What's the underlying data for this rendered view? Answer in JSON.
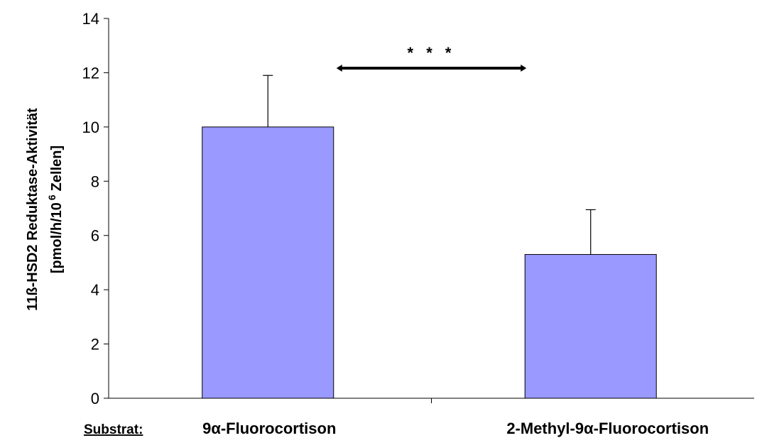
{
  "chart_data": {
    "type": "bar",
    "categories": [
      "9α-Fluorocortison",
      "2-Methyl-9α-Fluorocortison"
    ],
    "values": [
      10.0,
      5.3
    ],
    "error_upper": [
      11.9,
      6.95
    ],
    "ylabel_line1": "11ß-HSD2 Reduktase-Aktivität",
    "ylabel_line2_pre": "[pmol/h/10",
    "ylabel_line2_sup": "6",
    "ylabel_line2_post": "Zellen]",
    "xlabel_prefix": "Substrat:",
    "ylim": [
      0,
      14
    ],
    "yticks": [
      0,
      2,
      4,
      6,
      8,
      10,
      12,
      14
    ],
    "bar_color": "#9999ff",
    "significance": "* * *",
    "grid": false
  }
}
